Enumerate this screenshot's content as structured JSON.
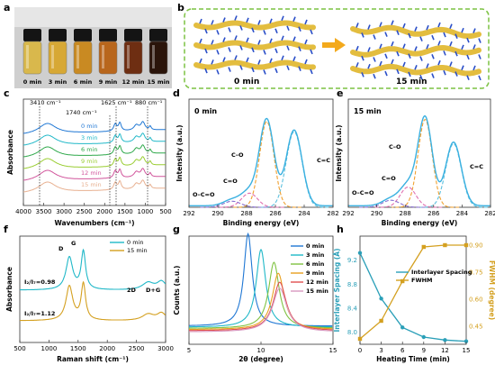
{
  "figure": {
    "panel_labels": [
      "a",
      "b",
      "c",
      "d",
      "e",
      "f",
      "g",
      "h"
    ]
  },
  "panel_a": {
    "vial_labels": [
      "0 min",
      "3 min",
      "6 min",
      "9 min",
      "12 min",
      "15 min"
    ],
    "vial_colors": [
      "#d9b84c",
      "#d7a835",
      "#c98a22",
      "#b8661c",
      "#6e2e12",
      "#2a140a"
    ]
  },
  "panel_b": {
    "labels": [
      "0 min",
      "15 min"
    ],
    "frame_color": "#7cc242"
  },
  "chart_data": [
    {
      "panel": "c",
      "type": "line",
      "xlabel": "Wavenumbers (cm⁻¹)",
      "ylabel": "Absorbance",
      "xlim": [
        4000,
        500
      ],
      "xticks": [
        4000,
        3500,
        3000,
        2500,
        2000,
        1500,
        1000,
        500
      ],
      "series": [
        {
          "name": "0 min",
          "color": "#1f77d4"
        },
        {
          "name": "3 min",
          "color": "#20b8c8"
        },
        {
          "name": "6 min",
          "color": "#2ea84a"
        },
        {
          "name": "9 min",
          "color": "#9acd32"
        },
        {
          "name": "12 min",
          "color": "#d1549b"
        },
        {
          "name": "15 min",
          "color": "#e8b090"
        }
      ],
      "annotations": [
        "3410 cm⁻¹",
        "1740 cm⁻¹",
        "1625 cm⁻¹",
        "880 cm⁻¹"
      ]
    },
    {
      "panel": "d",
      "type": "line",
      "title": "0 min",
      "xlabel": "Binding energy (eV)",
      "ylabel": "Intensity (a.u.)",
      "xlim": [
        292,
        282
      ],
      "xticks": [
        292,
        290,
        288,
        286,
        284,
        282
      ],
      "peaks": [
        {
          "label": "C=C",
          "center": 284.7,
          "height": 0.75,
          "width": 0.55,
          "color": "#5bc0de"
        },
        {
          "label": "C–O",
          "center": 286.6,
          "height": 0.85,
          "width": 0.5,
          "color": "#f0a030"
        },
        {
          "label": "C=O",
          "center": 287.8,
          "height": 0.14,
          "width": 0.55,
          "color": "#e070b0"
        },
        {
          "label": "O–C=O",
          "center": 289.0,
          "height": 0.06,
          "width": 0.6,
          "color": "#8a6fd0"
        }
      ]
    },
    {
      "panel": "e",
      "type": "line",
      "title": "15 min",
      "xlabel": "Binding energy (eV)",
      "ylabel": "Intensity (a.u.)",
      "xlim": [
        292,
        282
      ],
      "xticks": [
        292,
        290,
        288,
        286,
        284,
        282
      ],
      "peaks": [
        {
          "label": "C=C",
          "center": 284.6,
          "height": 0.63,
          "width": 0.55,
          "color": "#5bc0de"
        },
        {
          "label": "C–O",
          "center": 286.6,
          "height": 0.87,
          "width": 0.5,
          "color": "#f0a030"
        },
        {
          "label": "C=O",
          "center": 287.8,
          "height": 0.2,
          "width": 0.55,
          "color": "#e070b0"
        },
        {
          "label": "O–C=O",
          "center": 289.0,
          "height": 0.07,
          "width": 0.6,
          "color": "#8a6fd0"
        }
      ]
    },
    {
      "panel": "f",
      "type": "line",
      "xlabel": "Raman shift (cm⁻¹)",
      "ylabel": "Absorbance",
      "xlim": [
        500,
        3000
      ],
      "xticks": [
        500,
        1000,
        1500,
        2000,
        2500,
        3000
      ],
      "series": [
        {
          "name": "0 min",
          "color": "#20b8c8"
        },
        {
          "name": "15 min",
          "color": "#d4a020"
        }
      ],
      "peak_labels": [
        "D",
        "G",
        "2D",
        "D+G"
      ],
      "ratios": [
        "I₂/I₇=0.98",
        "I₂/I₇=1.12"
      ]
    },
    {
      "panel": "g",
      "type": "line",
      "xlabel": "2θ (degree)",
      "ylabel": "Counts (a.u.)",
      "xlim": [
        5,
        15
      ],
      "xticks": [
        5,
        10,
        15
      ],
      "series": [
        {
          "name": "0 min",
          "color": "#1f77d4",
          "center": 9.1,
          "height": 0.95,
          "width": 0.35
        },
        {
          "name": "3 min",
          "color": "#20b8c8",
          "center": 10.0,
          "height": 0.8,
          "width": 0.4
        },
        {
          "name": "6 min",
          "color": "#7fc241",
          "center": 10.9,
          "height": 0.68,
          "width": 0.45
        },
        {
          "name": "9 min",
          "color": "#e8a020",
          "center": 11.2,
          "height": 0.58,
          "width": 0.5
        },
        {
          "name": "12 min",
          "color": "#e05050",
          "center": 11.3,
          "height": 0.5,
          "width": 0.55
        },
        {
          "name": "15 min",
          "color": "#d898c0",
          "center": 11.3,
          "height": 0.45,
          "width": 0.6
        }
      ]
    },
    {
      "panel": "h",
      "type": "line",
      "xlabel": "Heating Time (min)",
      "ylabel": "Interlayer Spacing (Å)",
      "y2label": "FWHM (degree)",
      "xlim": [
        0,
        15
      ],
      "xticks": [
        0,
        3,
        6,
        9,
        12,
        15
      ],
      "ylim": [
        7.8,
        9.6
      ],
      "yticks": [
        8.0,
        8.4,
        8.8,
        9.2
      ],
      "y2lim": [
        0.35,
        0.95
      ],
      "y2ticks": [
        0.45,
        0.6,
        0.75,
        0.9
      ],
      "x": [
        0,
        3,
        6,
        9,
        12,
        15
      ],
      "series": [
        {
          "name": "Interlayer Spacing",
          "axis": "left",
          "color": "#2a9fb8",
          "values": [
            9.32,
            8.56,
            8.08,
            7.92,
            7.87,
            7.85
          ]
        },
        {
          "name": "FWHM",
          "axis": "right",
          "color": "#d4a020",
          "values": [
            0.38,
            0.48,
            0.7,
            0.89,
            0.9,
            0.9
          ]
        }
      ]
    }
  ]
}
